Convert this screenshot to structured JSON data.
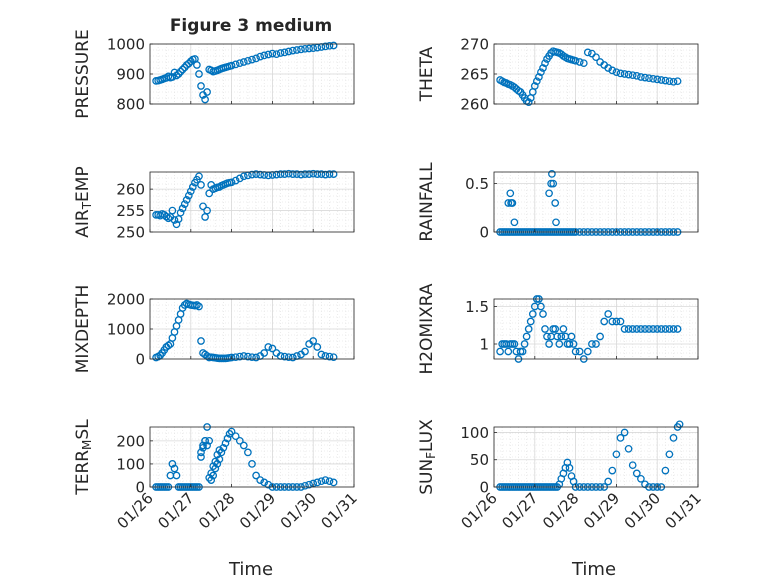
{
  "figure": {
    "title": "Figure 3 medium",
    "xlabel": "Time",
    "marker_color": "#0072BD",
    "xticks": [
      "01/26",
      "01/27",
      "01/28",
      "01/29",
      "01/30",
      "01/31"
    ]
  },
  "chart_data": [
    {
      "id": "pressure",
      "type": "scatter",
      "ylabel_parts": [
        [
          "PRESSURE",
          "n"
        ]
      ],
      "ylim": [
        800,
        1000
      ],
      "yticks": [
        800,
        900,
        1000
      ],
      "xlim": [
        0,
        5
      ],
      "x": [
        0.15,
        0.2,
        0.25,
        0.3,
        0.35,
        0.4,
        0.45,
        0.5,
        0.55,
        0.6,
        0.65,
        0.7,
        0.75,
        0.8,
        0.85,
        0.9,
        0.95,
        1.0,
        1.05,
        1.1,
        1.15,
        1.2,
        1.25,
        1.3,
        1.35,
        1.4,
        1.45,
        1.5,
        1.55,
        1.6,
        1.65,
        1.7,
        1.75,
        1.8,
        1.85,
        1.9,
        1.95,
        2.0,
        2.1,
        2.2,
        2.3,
        2.4,
        2.5,
        2.6,
        2.7,
        2.8,
        2.9,
        3.0,
        3.1,
        3.2,
        3.3,
        3.4,
        3.5,
        3.6,
        3.7,
        3.8,
        3.9,
        4.0,
        4.1,
        4.2,
        4.3,
        4.4,
        4.5
      ],
      "y": [
        877,
        878,
        880,
        882,
        885,
        887,
        892,
        888,
        890,
        905,
        895,
        900,
        908,
        915,
        922,
        930,
        935,
        942,
        948,
        950,
        930,
        900,
        860,
        830,
        815,
        840,
        915,
        912,
        908,
        910,
        912,
        915,
        918,
        920,
        922,
        924,
        926,
        928,
        932,
        936,
        940,
        944,
        948,
        952,
        958,
        962,
        965,
        968,
        966,
        970,
        972,
        975,
        978,
        980,
        982,
        984,
        985,
        986,
        988,
        990,
        992,
        994,
        995
      ]
    },
    {
      "id": "theta",
      "type": "scatter",
      "ylabel_parts": [
        [
          "THETA",
          "n"
        ]
      ],
      "ylim": [
        260,
        270
      ],
      "yticks": [
        260,
        265,
        270
      ],
      "xlim": [
        0,
        5
      ],
      "x": [
        0.15,
        0.2,
        0.25,
        0.3,
        0.35,
        0.4,
        0.45,
        0.5,
        0.55,
        0.6,
        0.65,
        0.7,
        0.75,
        0.8,
        0.85,
        0.9,
        0.95,
        1.0,
        1.05,
        1.1,
        1.15,
        1.2,
        1.25,
        1.3,
        1.35,
        1.4,
        1.45,
        1.5,
        1.55,
        1.6,
        1.65,
        1.7,
        1.75,
        1.8,
        1.85,
        1.9,
        1.95,
        2.0,
        2.1,
        2.2,
        2.3,
        2.4,
        2.5,
        2.6,
        2.7,
        2.8,
        2.9,
        3.0,
        3.1,
        3.2,
        3.3,
        3.4,
        3.5,
        3.6,
        3.7,
        3.8,
        3.9,
        4.0,
        4.1,
        4.2,
        4.3,
        4.4,
        4.5
      ],
      "y": [
        264,
        263.8,
        263.6,
        263.5,
        263.3,
        263.2,
        263,
        262.8,
        262.5,
        262.2,
        262,
        261.5,
        261,
        260.5,
        260.3,
        261,
        262,
        263,
        263.8,
        264.5,
        265.3,
        266,
        266.8,
        267.5,
        268,
        268.5,
        268.8,
        268.7,
        268.6,
        268.5,
        268.3,
        268.0,
        267.8,
        267.6,
        267.5,
        267.4,
        267.3,
        267.2,
        267.0,
        266.8,
        268.6,
        268.4,
        267.8,
        267.0,
        266.5,
        266.0,
        265.6,
        265.3,
        265.1,
        265.0,
        264.9,
        264.8,
        264.7,
        264.5,
        264.4,
        264.3,
        264.2,
        264.1,
        264.0,
        263.9,
        263.8,
        263.7,
        263.8
      ]
    },
    {
      "id": "air_temp",
      "type": "scatter",
      "ylabel_parts": [
        [
          "AIR",
          "n"
        ],
        [
          "T",
          "sub"
        ],
        [
          "EMP",
          "n"
        ]
      ],
      "ylim": [
        250,
        264
      ],
      "yticks": [
        250,
        255,
        260
      ],
      "xlim": [
        0,
        5
      ],
      "x": [
        0.15,
        0.2,
        0.25,
        0.3,
        0.35,
        0.4,
        0.45,
        0.5,
        0.55,
        0.6,
        0.65,
        0.7,
        0.75,
        0.8,
        0.85,
        0.9,
        0.95,
        1.0,
        1.05,
        1.1,
        1.15,
        1.2,
        1.25,
        1.3,
        1.35,
        1.4,
        1.45,
        1.5,
        1.55,
        1.6,
        1.65,
        1.7,
        1.75,
        1.8,
        1.85,
        1.9,
        1.95,
        2.0,
        2.1,
        2.2,
        2.3,
        2.4,
        2.5,
        2.6,
        2.7,
        2.8,
        2.9,
        3.0,
        3.1,
        3.2,
        3.3,
        3.4,
        3.5,
        3.6,
        3.7,
        3.8,
        3.9,
        4.0,
        4.1,
        4.2,
        4.3,
        4.4,
        4.5
      ],
      "y": [
        254,
        254,
        253.8,
        254.2,
        254,
        253.6,
        253.2,
        253.5,
        255,
        252.8,
        251.8,
        253,
        254.5,
        255.5,
        256.5,
        257.5,
        258.5,
        259.5,
        260.5,
        261.5,
        262.2,
        263,
        261,
        256,
        253.5,
        255,
        259,
        261,
        260,
        260.2,
        260.4,
        260.5,
        260.8,
        261,
        261.2,
        261.4,
        261.5,
        261.6,
        262,
        262.5,
        263,
        263.2,
        263.4,
        263.5,
        263.4,
        263.3,
        263.2,
        263.3,
        263.4,
        263.5,
        263.5,
        263.6,
        263.5,
        263.5,
        263.4,
        263.5,
        263.5,
        263.6,
        263.5,
        263.5,
        263.4,
        263.5,
        263.5
      ]
    },
    {
      "id": "rainfall",
      "type": "scatter",
      "ylabel_parts": [
        [
          "RAINFALL",
          "n"
        ]
      ],
      "ylim": [
        0,
        0.62
      ],
      "yticks": [
        0,
        0.5
      ],
      "xlim": [
        0,
        5
      ],
      "x": [
        0.15,
        0.2,
        0.25,
        0.3,
        0.35,
        0.4,
        0.45,
        0.5,
        0.55,
        0.6,
        0.65,
        0.7,
        0.75,
        0.8,
        0.85,
        0.9,
        0.95,
        1.0,
        1.05,
        1.1,
        1.15,
        1.2,
        1.25,
        1.3,
        1.35,
        1.4,
        1.45,
        1.5,
        1.55,
        1.6,
        1.65,
        1.7,
        1.75,
        1.8,
        1.85,
        1.9,
        1.95,
        2.0,
        2.1,
        2.2,
        2.3,
        2.4,
        2.5,
        2.6,
        2.7,
        2.8,
        2.9,
        3.0,
        3.1,
        3.2,
        3.3,
        3.4,
        3.5,
        3.6,
        3.7,
        3.8,
        3.9,
        4.0,
        4.1,
        4.2,
        4.3,
        4.4,
        4.5,
        0.35,
        0.4,
        0.42,
        0.45,
        0.5,
        1.35,
        1.4,
        1.42,
        1.45,
        1.5,
        1.52
      ],
      "y": [
        0,
        0,
        0,
        0,
        0,
        0,
        0,
        0,
        0,
        0,
        0,
        0,
        0,
        0,
        0,
        0,
        0,
        0,
        0,
        0,
        0,
        0,
        0,
        0,
        0,
        0,
        0,
        0,
        0,
        0,
        0,
        0,
        0,
        0,
        0,
        0,
        0,
        0,
        0,
        0,
        0,
        0,
        0,
        0,
        0,
        0,
        0,
        0,
        0,
        0,
        0,
        0,
        0,
        0,
        0,
        0,
        0,
        0,
        0,
        0,
        0,
        0,
        0,
        0.3,
        0.4,
        0.3,
        0.3,
        0.1,
        0.4,
        0.5,
        0.6,
        0.5,
        0.3,
        0.1
      ]
    },
    {
      "id": "mixdepth",
      "type": "scatter",
      "ylabel_parts": [
        [
          "MIXDEPTH",
          "n"
        ]
      ],
      "ylim": [
        0,
        2000
      ],
      "yticks": [
        0,
        1000,
        2000
      ],
      "xlim": [
        0,
        5
      ],
      "x": [
        0.15,
        0.2,
        0.25,
        0.3,
        0.35,
        0.4,
        0.45,
        0.5,
        0.55,
        0.6,
        0.65,
        0.7,
        0.75,
        0.8,
        0.85,
        0.9,
        0.95,
        1.0,
        1.05,
        1.1,
        1.15,
        1.2,
        1.25,
        1.3,
        1.35,
        1.4,
        1.45,
        1.5,
        1.55,
        1.6,
        1.65,
        1.7,
        1.75,
        1.8,
        1.85,
        1.9,
        1.95,
        2.0,
        2.1,
        2.2,
        2.3,
        2.4,
        2.5,
        2.6,
        2.7,
        2.8,
        2.9,
        3.0,
        3.1,
        3.2,
        3.3,
        3.4,
        3.5,
        3.6,
        3.7,
        3.8,
        3.9,
        4.0,
        4.1,
        4.2,
        4.3,
        4.4,
        4.5
      ],
      "y": [
        50,
        80,
        120,
        200,
        300,
        400,
        450,
        500,
        700,
        900,
        1100,
        1300,
        1500,
        1700,
        1800,
        1850,
        1820,
        1800,
        1790,
        1780,
        1800,
        1750,
        600,
        200,
        150,
        100,
        50,
        60,
        50,
        40,
        30,
        20,
        20,
        20,
        20,
        30,
        40,
        50,
        60,
        80,
        100,
        80,
        60,
        50,
        100,
        200,
        400,
        350,
        200,
        100,
        80,
        60,
        50,
        100,
        150,
        250,
        500,
        600,
        400,
        150,
        100,
        80,
        60
      ]
    },
    {
      "id": "h2omixra",
      "type": "scatter",
      "ylabel_parts": [
        [
          "H2OMIXRA",
          "n"
        ]
      ],
      "ylim": [
        0.8,
        1.6
      ],
      "yticks": [
        1,
        1.5
      ],
      "xlim": [
        0,
        5
      ],
      "x": [
        0.15,
        0.2,
        0.25,
        0.3,
        0.35,
        0.4,
        0.45,
        0.5,
        0.55,
        0.6,
        0.65,
        0.7,
        0.75,
        0.8,
        0.85,
        0.9,
        0.95,
        1.0,
        1.05,
        1.1,
        1.15,
        1.2,
        1.25,
        1.3,
        1.35,
        1.4,
        1.45,
        1.5,
        1.55,
        1.6,
        1.65,
        1.7,
        1.75,
        1.8,
        1.85,
        1.9,
        1.95,
        2.0,
        2.1,
        2.2,
        2.3,
        2.4,
        2.5,
        2.6,
        2.7,
        2.8,
        2.9,
        3.0,
        3.1,
        3.2,
        3.3,
        3.4,
        3.5,
        3.6,
        3.7,
        3.8,
        3.9,
        4.0,
        4.1,
        4.2,
        4.3,
        4.4,
        4.5
      ],
      "y": [
        0.9,
        1.0,
        1.0,
        1.0,
        0.9,
        1.0,
        1.0,
        1.0,
        0.9,
        0.8,
        0.9,
        0.9,
        1.0,
        1.1,
        1.2,
        1.3,
        1.4,
        1.5,
        1.6,
        1.6,
        1.5,
        1.4,
        1.2,
        1.1,
        1.0,
        1.1,
        1.2,
        1.2,
        1.1,
        1.0,
        1.1,
        1.2,
        1.1,
        1.0,
        1.0,
        1.1,
        1.0,
        0.9,
        0.9,
        0.8,
        0.9,
        1.0,
        1.0,
        1.1,
        1.3,
        1.4,
        1.3,
        1.3,
        1.3,
        1.2,
        1.2,
        1.2,
        1.2,
        1.2,
        1.2,
        1.2,
        1.2,
        1.2,
        1.2,
        1.2,
        1.2,
        1.2,
        1.2
      ]
    },
    {
      "id": "terr_msl",
      "type": "scatter",
      "ylabel_parts": [
        [
          "TERR",
          "n"
        ],
        [
          "M",
          "sub"
        ],
        [
          "SL",
          "n"
        ]
      ],
      "ylim": [
        0,
        260
      ],
      "yticks": [
        0,
        100,
        200
      ],
      "xlim": [
        0,
        5
      ],
      "x": [
        0.15,
        0.2,
        0.25,
        0.3,
        0.35,
        0.4,
        0.45,
        0.5,
        0.55,
        0.6,
        0.65,
        0.7,
        0.75,
        0.8,
        0.85,
        0.9,
        0.95,
        1.0,
        1.05,
        1.1,
        1.15,
        1.2,
        1.25,
        1.3,
        1.35,
        1.4,
        1.45,
        1.5,
        1.55,
        1.6,
        1.65,
        1.7,
        1.75,
        1.8,
        1.85,
        1.9,
        1.95,
        2.0,
        2.1,
        2.2,
        2.3,
        2.4,
        2.5,
        2.6,
        2.7,
        2.8,
        2.9,
        3.0,
        3.1,
        3.2,
        3.3,
        3.4,
        3.5,
        3.6,
        3.7,
        3.8,
        3.9,
        4.0,
        4.1,
        4.2,
        4.3,
        4.4,
        4.5,
        1.25,
        1.3,
        1.35,
        1.4,
        1.45,
        1.5,
        1.55,
        1.6,
        1.65,
        1.7
      ],
      "y": [
        0,
        0,
        0,
        0,
        0,
        0,
        0,
        50,
        100,
        80,
        50,
        0,
        0,
        0,
        0,
        0,
        0,
        0,
        0,
        0,
        0,
        0,
        130,
        180,
        200,
        260,
        200,
        30,
        50,
        80,
        100,
        120,
        150,
        170,
        190,
        210,
        230,
        240,
        220,
        200,
        180,
        150,
        100,
        50,
        30,
        20,
        10,
        0,
        0,
        0,
        0,
        0,
        0,
        0,
        0,
        5,
        10,
        15,
        20,
        25,
        30,
        25,
        20,
        150,
        170,
        200,
        180,
        40,
        60,
        90,
        110,
        140,
        160
      ]
    },
    {
      "id": "sun_flux",
      "type": "scatter",
      "ylabel_parts": [
        [
          "SUN",
          "n"
        ],
        [
          "F",
          "sub"
        ],
        [
          "LUX",
          "n"
        ]
      ],
      "ylim": [
        0,
        110
      ],
      "yticks": [
        0,
        50,
        100
      ],
      "xlim": [
        0,
        5
      ],
      "x": [
        0.15,
        0.2,
        0.25,
        0.3,
        0.35,
        0.4,
        0.45,
        0.5,
        0.55,
        0.6,
        0.65,
        0.7,
        0.75,
        0.8,
        0.85,
        0.9,
        0.95,
        1.0,
        1.05,
        1.1,
        1.15,
        1.2,
        1.25,
        1.3,
        1.35,
        1.4,
        1.45,
        1.5,
        1.55,
        1.6,
        1.65,
        1.7,
        1.75,
        1.8,
        1.85,
        1.9,
        1.95,
        2.0,
        2.1,
        2.2,
        2.3,
        2.4,
        2.5,
        2.6,
        2.7,
        2.8,
        2.9,
        3.0,
        3.1,
        3.2,
        3.3,
        3.4,
        3.5,
        3.6,
        3.7,
        3.8,
        3.9,
        4.0,
        4.1,
        4.2,
        4.3,
        4.4,
        4.5,
        4.55
      ],
      "y": [
        0,
        0,
        0,
        0,
        0,
        0,
        0,
        0,
        0,
        0,
        0,
        0,
        0,
        0,
        0,
        0,
        0,
        0,
        0,
        0,
        0,
        0,
        0,
        0,
        0,
        0,
        0,
        0,
        0,
        5,
        15,
        25,
        35,
        45,
        35,
        20,
        10,
        0,
        0,
        0,
        0,
        0,
        0,
        0,
        0,
        10,
        30,
        60,
        90,
        100,
        70,
        40,
        25,
        15,
        5,
        0,
        0,
        0,
        0,
        30,
        60,
        90,
        110,
        115
      ]
    }
  ]
}
